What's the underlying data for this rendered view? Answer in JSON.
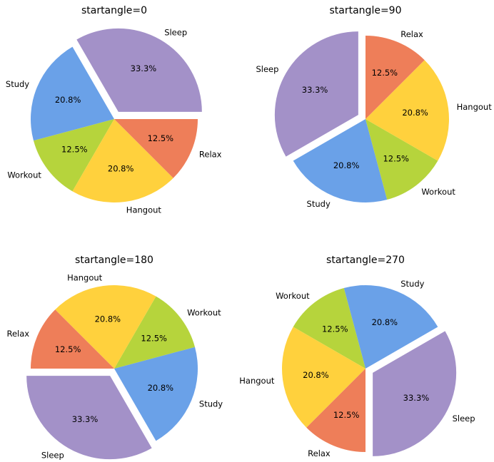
{
  "chart_data": [
    {
      "type": "pie",
      "title": "startangle=0",
      "startangle": 0,
      "explode": [
        0.1,
        0,
        0,
        0,
        0
      ],
      "categories": [
        "Sleep",
        "Study",
        "Workout",
        "Hangout",
        "Relax"
      ],
      "values": [
        8,
        5,
        3,
        5,
        3
      ],
      "percent_labels": [
        "33.3%",
        "20.8%",
        "12.5%",
        "20.8%",
        "12.5%"
      ],
      "colors": [
        "#a391c8",
        "#6aa1e8",
        "#b6d43c",
        "#ffd13d",
        "#ee7e59"
      ]
    },
    {
      "type": "pie",
      "title": "startangle=90",
      "startangle": 90,
      "explode": [
        0.1,
        0,
        0,
        0,
        0
      ],
      "categories": [
        "Sleep",
        "Study",
        "Workout",
        "Hangout",
        "Relax"
      ],
      "values": [
        8,
        5,
        3,
        5,
        3
      ],
      "percent_labels": [
        "33.3%",
        "20.8%",
        "12.5%",
        "20.8%",
        "12.5%"
      ],
      "colors": [
        "#a391c8",
        "#6aa1e8",
        "#b6d43c",
        "#ffd13d",
        "#ee7e59"
      ]
    },
    {
      "type": "pie",
      "title": "startangle=180",
      "startangle": 180,
      "explode": [
        0.1,
        0,
        0,
        0,
        0
      ],
      "categories": [
        "Sleep",
        "Study",
        "Workout",
        "Hangout",
        "Relax"
      ],
      "values": [
        8,
        5,
        3,
        5,
        3
      ],
      "percent_labels": [
        "33.3%",
        "20.8%",
        "12.5%",
        "20.8%",
        "12.5%"
      ],
      "colors": [
        "#a391c8",
        "#6aa1e8",
        "#b6d43c",
        "#ffd13d",
        "#ee7e59"
      ]
    },
    {
      "type": "pie",
      "title": "startangle=270",
      "startangle": 270,
      "explode": [
        0.1,
        0,
        0,
        0,
        0
      ],
      "categories": [
        "Sleep",
        "Study",
        "Workout",
        "Hangout",
        "Relax"
      ],
      "values": [
        8,
        5,
        3,
        5,
        3
      ],
      "percent_labels": [
        "33.3%",
        "20.8%",
        "12.5%",
        "20.8%",
        "12.5%"
      ],
      "colors": [
        "#a391c8",
        "#6aa1e8",
        "#b6d43c",
        "#ffd13d",
        "#ee7e59"
      ]
    }
  ]
}
